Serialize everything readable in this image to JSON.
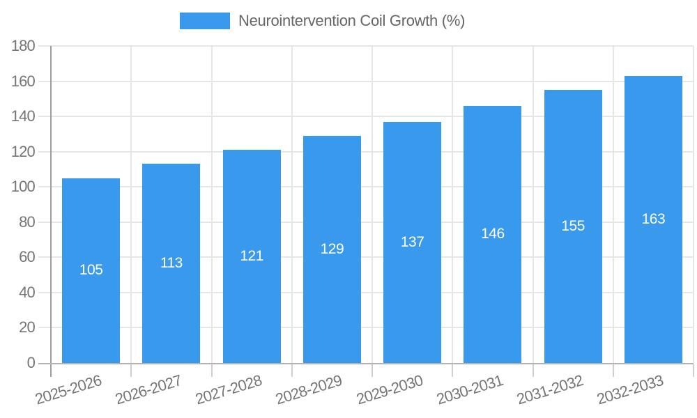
{
  "chart_data": {
    "type": "bar",
    "title": "Neurointervention Coil Growth (%)",
    "legend": {
      "label": "Neurointervention Coil Growth (%)",
      "position": "top-center"
    },
    "categories": [
      "2025-2026",
      "2026-2027",
      "2027-2028",
      "2028-2029",
      "2029-2030",
      "2030-2031",
      "2031-2032",
      "2032-2033"
    ],
    "values": [
      105,
      113,
      121,
      129,
      137,
      146,
      155,
      163
    ],
    "value_labels": [
      "105",
      "113",
      "121",
      "129",
      "137",
      "146",
      "155",
      "163"
    ],
    "xlabel": "",
    "ylabel": "",
    "ylim": [
      0,
      180
    ],
    "yticks": [
      0,
      20,
      40,
      60,
      80,
      100,
      120,
      140,
      160,
      180
    ],
    "grid": "horizontal and vertical category boundaries",
    "x_label_rotation_deg": -17,
    "colors": {
      "bar": "#3999EC",
      "value_label": "#FFFFFF",
      "axis_text": "#757575",
      "legend_text": "#666666",
      "grid_line": "#E6E6E6",
      "y_axis_line": "#9E9E9E",
      "x_axis_line": "#B3B3B3",
      "tick": "#CFCFCF",
      "background": "#FFFFFF"
    }
  }
}
